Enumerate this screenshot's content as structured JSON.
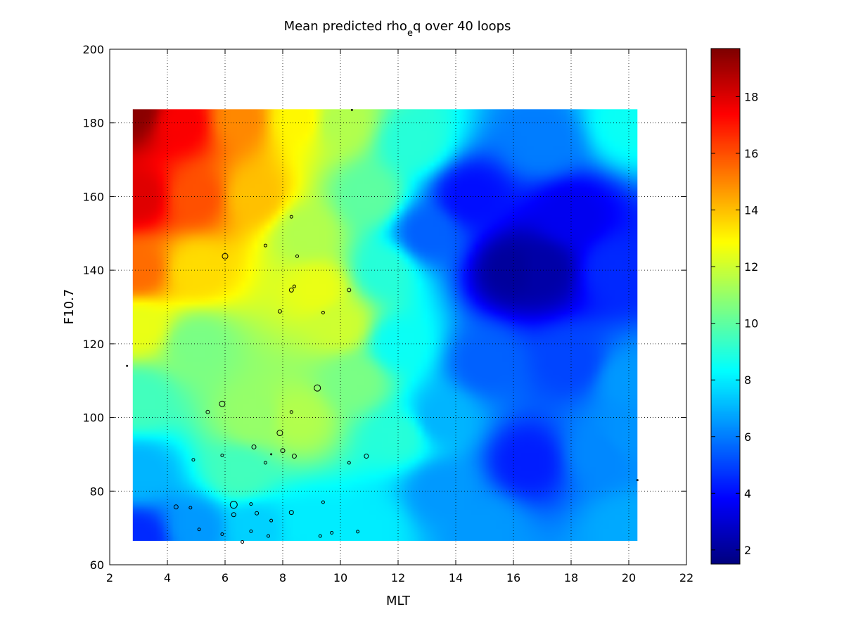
{
  "chart_data": {
    "type": "heatmap",
    "title_parts": {
      "main": "Mean predicted rho",
      "subscript": "e",
      "tail": "q over 40 loops"
    },
    "xlabel": "MLT",
    "ylabel": "F10.7",
    "xlim": [
      2,
      22
    ],
    "ylim": [
      60,
      200
    ],
    "xticks": [
      2,
      4,
      6,
      8,
      10,
      12,
      14,
      16,
      18,
      20,
      22
    ],
    "yticks": [
      60,
      80,
      100,
      120,
      140,
      160,
      180,
      200
    ],
    "grid": true,
    "heatmap_extent": {
      "x": [
        2.8,
        20.3
      ],
      "y": [
        66.5,
        183.7
      ]
    },
    "colormap": "jet",
    "colorbar": {
      "range": [
        1.5,
        19.7
      ],
      "ticks": [
        2,
        4,
        6,
        8,
        10,
        12,
        14,
        16,
        18
      ]
    },
    "field_anchors": [
      {
        "x": 2.8,
        "y": 183,
        "v": 19.5
      },
      {
        "x": 4.5,
        "y": 180,
        "v": 17.5
      },
      {
        "x": 6.5,
        "y": 181,
        "v": 15
      },
      {
        "x": 8.5,
        "y": 181,
        "v": 13
      },
      {
        "x": 10,
        "y": 180,
        "v": 11.5
      },
      {
        "x": 3,
        "y": 160,
        "v": 18
      },
      {
        "x": 5,
        "y": 160,
        "v": 16
      },
      {
        "x": 7,
        "y": 160,
        "v": 14
      },
      {
        "x": 3,
        "y": 140,
        "v": 15.5
      },
      {
        "x": 5,
        "y": 140,
        "v": 13.5
      },
      {
        "x": 3,
        "y": 125,
        "v": 12.5
      },
      {
        "x": 5,
        "y": 120,
        "v": 10.5
      },
      {
        "x": 3,
        "y": 105,
        "v": 9.5
      },
      {
        "x": 3,
        "y": 85,
        "v": 7
      },
      {
        "x": 3,
        "y": 67,
        "v": 4.5
      },
      {
        "x": 5,
        "y": 70,
        "v": 6.5
      },
      {
        "x": 7,
        "y": 70,
        "v": 7.5
      },
      {
        "x": 9,
        "y": 70,
        "v": 8
      },
      {
        "x": 11,
        "y": 70,
        "v": 8
      },
      {
        "x": 6.5,
        "y": 85,
        "v": 9.5
      },
      {
        "x": 7,
        "y": 100,
        "v": 11
      },
      {
        "x": 8.5,
        "y": 100,
        "v": 11.5
      },
      {
        "x": 9.2,
        "y": 135,
        "v": 12.5
      },
      {
        "x": 8.8,
        "y": 150,
        "v": 11.5
      },
      {
        "x": 10,
        "y": 125,
        "v": 12
      },
      {
        "x": 10.5,
        "y": 110,
        "v": 10.5
      },
      {
        "x": 11.5,
        "y": 140,
        "v": 9
      },
      {
        "x": 12,
        "y": 120,
        "v": 8.5
      },
      {
        "x": 12,
        "y": 95,
        "v": 9
      },
      {
        "x": 11,
        "y": 160,
        "v": 10
      },
      {
        "x": 12.5,
        "y": 175,
        "v": 9
      },
      {
        "x": 13,
        "y": 150,
        "v": 5.5
      },
      {
        "x": 13.5,
        "y": 80,
        "v": 6.5
      },
      {
        "x": 14.5,
        "y": 160,
        "v": 4
      },
      {
        "x": 16,
        "y": 140,
        "v": 2
      },
      {
        "x": 17,
        "y": 140,
        "v": 2.2
      },
      {
        "x": 18,
        "y": 155,
        "v": 3.5
      },
      {
        "x": 19.5,
        "y": 140,
        "v": 4.5
      },
      {
        "x": 17,
        "y": 175,
        "v": 6
      },
      {
        "x": 20,
        "y": 180,
        "v": 8.5
      },
      {
        "x": 15,
        "y": 115,
        "v": 5.5
      },
      {
        "x": 18,
        "y": 115,
        "v": 5
      },
      {
        "x": 20,
        "y": 110,
        "v": 6.5
      },
      {
        "x": 16.5,
        "y": 88,
        "v": 4.3
      },
      {
        "x": 19,
        "y": 90,
        "v": 6.2
      },
      {
        "x": 15,
        "y": 70,
        "v": 6.5
      },
      {
        "x": 20,
        "y": 70,
        "v": 6.8
      },
      {
        "x": 20,
        "y": 95,
        "v": 6.4
      },
      {
        "x": 13.5,
        "y": 100,
        "v": 7
      }
    ],
    "samples": [
      {
        "x": 2.6,
        "y": 114,
        "s": 1
      },
      {
        "x": 10.4,
        "y": 183.5,
        "s": 1
      },
      {
        "x": 20.3,
        "y": 83,
        "s": 0.5
      },
      {
        "x": 8.3,
        "y": 154.5,
        "s": 2
      },
      {
        "x": 6.0,
        "y": 143.8,
        "s": 4
      },
      {
        "x": 7.4,
        "y": 146.7,
        "s": 2
      },
      {
        "x": 8.5,
        "y": 143.8,
        "s": 2
      },
      {
        "x": 8.3,
        "y": 134.6,
        "s": 3
      },
      {
        "x": 8.4,
        "y": 135.6,
        "s": 2
      },
      {
        "x": 10.3,
        "y": 134.6,
        "s": 2.5
      },
      {
        "x": 7.9,
        "y": 128.8,
        "s": 2.5
      },
      {
        "x": 9.4,
        "y": 128.5,
        "s": 2
      },
      {
        "x": 9.2,
        "y": 108,
        "s": 4.5
      },
      {
        "x": 5.9,
        "y": 103.7,
        "s": 4
      },
      {
        "x": 5.4,
        "y": 101.5,
        "s": 2.5
      },
      {
        "x": 8.3,
        "y": 101.5,
        "s": 2
      },
      {
        "x": 7.9,
        "y": 95.8,
        "s": 4
      },
      {
        "x": 7.0,
        "y": 92,
        "s": 3
      },
      {
        "x": 8.0,
        "y": 91,
        "s": 3
      },
      {
        "x": 5.9,
        "y": 89.7,
        "s": 2
      },
      {
        "x": 7.6,
        "y": 90,
        "s": 0.5
      },
      {
        "x": 8.4,
        "y": 89.5,
        "s": 3
      },
      {
        "x": 10.9,
        "y": 89.5,
        "s": 3
      },
      {
        "x": 4.9,
        "y": 88.5,
        "s": 2
      },
      {
        "x": 7.4,
        "y": 87.7,
        "s": 2
      },
      {
        "x": 10.3,
        "y": 87.7,
        "s": 2
      },
      {
        "x": 4.3,
        "y": 75.7,
        "s": 3
      },
      {
        "x": 4.8,
        "y": 75.5,
        "s": 2
      },
      {
        "x": 6.3,
        "y": 76.3,
        "s": 5
      },
      {
        "x": 6.9,
        "y": 76.5,
        "s": 2
      },
      {
        "x": 9.4,
        "y": 77,
        "s": 2
      },
      {
        "x": 8.3,
        "y": 74.2,
        "s": 3
      },
      {
        "x": 7.1,
        "y": 74,
        "s": 2.5
      },
      {
        "x": 6.3,
        "y": 73.6,
        "s": 3
      },
      {
        "x": 7.6,
        "y": 72,
        "s": 2
      },
      {
        "x": 5.1,
        "y": 69.6,
        "s": 2
      },
      {
        "x": 6.9,
        "y": 69.1,
        "s": 2
      },
      {
        "x": 9.7,
        "y": 68.7,
        "s": 2
      },
      {
        "x": 10.6,
        "y": 69,
        "s": 2
      },
      {
        "x": 5.9,
        "y": 68.3,
        "s": 2
      },
      {
        "x": 7.5,
        "y": 67.8,
        "s": 2
      },
      {
        "x": 9.3,
        "y": 67.8,
        "s": 2
      },
      {
        "x": 6.6,
        "y": 66.2,
        "s": 2
      }
    ]
  }
}
